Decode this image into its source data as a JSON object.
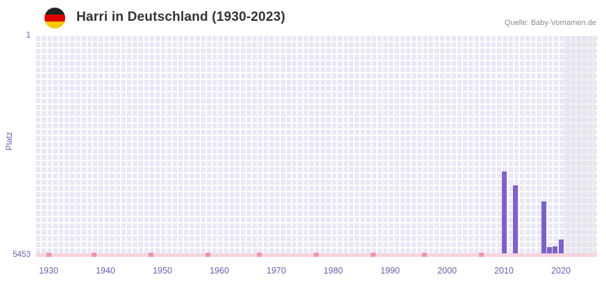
{
  "header": {
    "title": "Harri in Deutschland (1930-2023)",
    "source": "Quelle: Baby-Vornamen.de"
  },
  "chart_data": {
    "type": "bar",
    "title": "Harri in Deutschland (1930-2023)",
    "ylabel": "Platz",
    "xlabel": "",
    "y_axis": {
      "min": 1,
      "max": 5453,
      "inverted": true,
      "top_label": "1",
      "bottom_label": "5453"
    },
    "x_axis": {
      "min": 1930,
      "max": 2023,
      "tick_labels": [
        "1930",
        "1940",
        "1950",
        "1960",
        "1970",
        "1980",
        "1990",
        "2000",
        "2010",
        "2020"
      ]
    },
    "series": [
      {
        "name": "Platz",
        "points": [
          {
            "year": 2010,
            "rank": 3400
          },
          {
            "year": 2012,
            "rank": 3750
          },
          {
            "year": 2017,
            "rank": 4150
          },
          {
            "year": 2018,
            "rank": 5300
          },
          {
            "year": 2019,
            "rank": 5270
          },
          {
            "year": 2020,
            "rank": 5100
          }
        ]
      }
    ],
    "no_rank_marker_years": [
      1930,
      1938,
      1948,
      1958,
      1967,
      1977,
      1987,
      1996,
      2006
    ],
    "recent_highlight_from_year": 2021,
    "grid": true,
    "legend": "none",
    "colors": {
      "bar": "#7e61c8",
      "grid_cell": "#e9e6f5",
      "axis_text": "#6a5ca9",
      "baseline_strip": "#f7d4dc",
      "no_rank_marker": "#ef96a6",
      "recent_band": "rgba(226,226,234,0.55)",
      "title_text": "#333333",
      "source_text": "#8b8b8b",
      "flag_black": "#222222",
      "flag_red": "#dd0000",
      "flag_gold": "#f6c700"
    }
  }
}
